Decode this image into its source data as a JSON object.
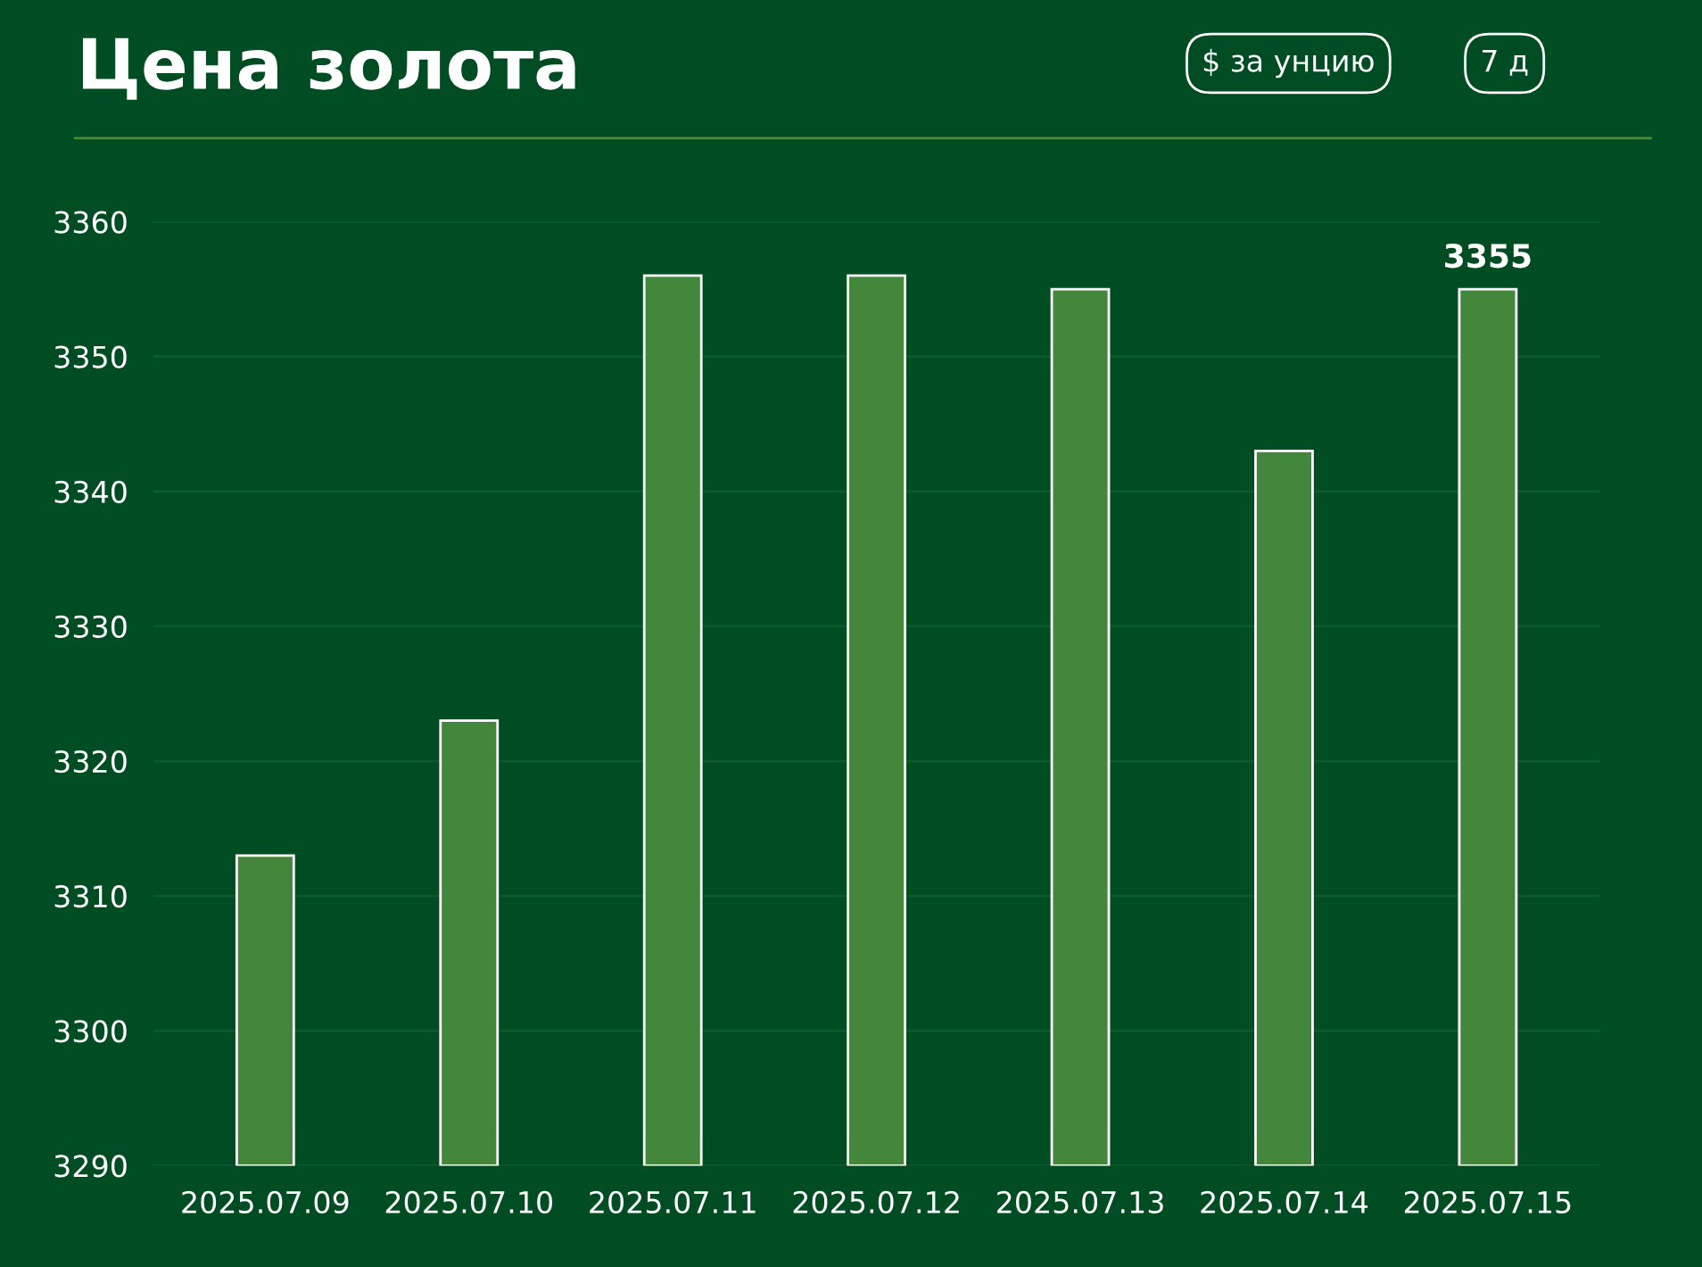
{
  "chart_data": {
    "type": "bar",
    "title": "Цена золота",
    "annotations": [
      "$ за унцию",
      "7 д"
    ],
    "categories": [
      "2025.07.09",
      "2025.07.10",
      "2025.07.11",
      "2025.07.12",
      "2025.07.13",
      "2025.07.14",
      "2025.07.15"
    ],
    "values": [
      3313,
      3323,
      3356,
      3356,
      3355,
      3343,
      3355
    ],
    "value_labels": [
      null,
      null,
      null,
      null,
      null,
      null,
      "3355"
    ],
    "color": "#43873d",
    "ylim": [
      3290,
      3360
    ],
    "yticks": [
      3290,
      3300,
      3310,
      3320,
      3330,
      3340,
      3350,
      3360
    ],
    "grid": "y",
    "legend": false
  }
}
